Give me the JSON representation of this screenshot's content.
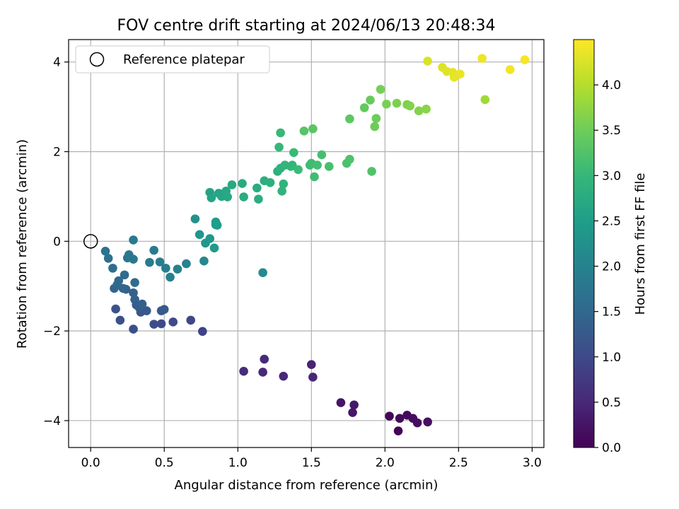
{
  "chart_data": {
    "type": "scatter",
    "title": "FOV centre drift starting at 2024/06/13 20:48:34",
    "xlabel": "Angular distance from reference (arcmin)",
    "ylabel": "Rotation from reference (arcmin)",
    "colorbar_label": "Hours from first FF file",
    "colormap": "viridis",
    "xlim": [
      -0.15,
      3.08
    ],
    "ylim": [
      -4.6,
      4.5
    ],
    "color_range": [
      0.0,
      4.5
    ],
    "grid": true,
    "legend": {
      "position": "top-left",
      "label": "Reference platepar"
    },
    "x_ticks": [
      "0.0",
      "0.5",
      "1.0",
      "1.5",
      "2.0",
      "2.5",
      "3.0"
    ],
    "x_tick_values": [
      0.0,
      0.5,
      1.0,
      1.5,
      2.0,
      2.5,
      3.0
    ],
    "y_ticks": [
      "−4",
      "−2",
      "0",
      "2",
      "4"
    ],
    "y_tick_values": [
      -4,
      -2,
      0,
      2,
      4
    ],
    "c_ticks": [
      "0.0",
      "0.5",
      "1.0",
      "1.5",
      "2.0",
      "2.5",
      "3.0",
      "3.5",
      "4.0"
    ],
    "c_tick_values": [
      0.0,
      0.5,
      1.0,
      1.5,
      2.0,
      2.5,
      3.0,
      3.5,
      4.0
    ],
    "reference_point": {
      "x": 0.0,
      "y": 0.0
    },
    "points": [
      [
        2.09,
        -4.23,
        0.03
      ],
      [
        2.03,
        -3.9,
        0.08
      ],
      [
        2.1,
        -3.95,
        0.1
      ],
      [
        2.15,
        -3.88,
        0.12
      ],
      [
        2.19,
        -3.95,
        0.15
      ],
      [
        2.22,
        -4.05,
        0.17
      ],
      [
        2.29,
        -4.03,
        0.19
      ],
      [
        1.7,
        -3.6,
        0.25
      ],
      [
        1.78,
        -3.82,
        0.28
      ],
      [
        1.79,
        -3.65,
        0.3
      ],
      [
        1.5,
        -2.75,
        0.45
      ],
      [
        1.51,
        -3.03,
        0.48
      ],
      [
        1.31,
        -3.01,
        0.5
      ],
      [
        1.17,
        -2.92,
        0.52
      ],
      [
        1.18,
        -2.63,
        0.55
      ],
      [
        1.04,
        -2.9,
        0.58
      ],
      [
        0.76,
        -2.01,
        0.9
      ],
      [
        0.68,
        -1.76,
        0.95
      ],
      [
        0.56,
        -1.8,
        1.0
      ],
      [
        0.48,
        -1.84,
        1.03
      ],
      [
        0.43,
        -1.85,
        1.05
      ],
      [
        0.29,
        -1.96,
        1.08
      ],
      [
        0.2,
        -1.76,
        1.1
      ],
      [
        0.17,
        -1.51,
        1.15
      ],
      [
        0.34,
        -1.58,
        1.2
      ],
      [
        0.38,
        -1.55,
        1.22
      ],
      [
        0.48,
        -1.55,
        1.25
      ],
      [
        0.5,
        -1.52,
        1.28
      ],
      [
        0.33,
        -1.48,
        1.3
      ],
      [
        0.31,
        -1.42,
        1.33
      ],
      [
        0.35,
        -1.4,
        1.35
      ],
      [
        0.3,
        -1.3,
        1.38
      ],
      [
        0.29,
        -1.15,
        1.4
      ],
      [
        0.24,
        -1.07,
        1.42
      ],
      [
        0.22,
        -1.05,
        1.45
      ],
      [
        0.16,
        -1.05,
        1.47
      ],
      [
        0.18,
        -0.97,
        1.5
      ],
      [
        0.19,
        -0.88,
        1.52
      ],
      [
        0.23,
        -0.75,
        1.55
      ],
      [
        0.3,
        -0.92,
        1.57
      ],
      [
        0.15,
        -0.6,
        1.6
      ],
      [
        0.12,
        -0.38,
        1.65
      ],
      [
        0.1,
        -0.22,
        1.7
      ],
      [
        0.25,
        -0.37,
        1.75
      ],
      [
        0.26,
        -0.3,
        1.78
      ],
      [
        0.29,
        -0.4,
        1.8
      ],
      [
        0.29,
        0.03,
        1.82
      ],
      [
        0.4,
        -0.47,
        1.85
      ],
      [
        0.43,
        -0.2,
        1.88
      ],
      [
        0.47,
        -0.46,
        1.9
      ],
      [
        0.51,
        -0.6,
        1.92
      ],
      [
        0.54,
        -0.8,
        1.95
      ],
      [
        0.59,
        -0.62,
        1.98
      ],
      [
        0.65,
        -0.5,
        2.0
      ],
      [
        0.77,
        -0.44,
        2.1
      ],
      [
        1.17,
        -0.7,
        2.15
      ],
      [
        0.71,
        0.5,
        2.3
      ],
      [
        0.74,
        0.15,
        2.35
      ],
      [
        0.78,
        -0.04,
        2.38
      ],
      [
        0.81,
        0.06,
        2.4
      ],
      [
        0.84,
        -0.15,
        2.42
      ],
      [
        0.85,
        0.37,
        2.45
      ],
      [
        0.85,
        0.43,
        2.48
      ],
      [
        0.86,
        0.36,
        2.5
      ],
      [
        0.81,
        1.09,
        2.6
      ],
      [
        0.82,
        0.97,
        2.62
      ],
      [
        0.87,
        1.07,
        2.64
      ],
      [
        0.89,
        1.0,
        2.66
      ],
      [
        0.92,
        1.12,
        2.68
      ],
      [
        0.93,
        0.99,
        2.7
      ],
      [
        0.96,
        1.26,
        2.72
      ],
      [
        1.03,
        1.29,
        2.74
      ],
      [
        1.04,
        0.99,
        2.76
      ],
      [
        1.13,
        1.19,
        2.78
      ],
      [
        1.14,
        0.94,
        2.8
      ],
      [
        1.18,
        1.35,
        2.82
      ],
      [
        1.22,
        1.31,
        2.84
      ],
      [
        1.27,
        1.56,
        2.86
      ],
      [
        1.29,
        1.63,
        2.88
      ],
      [
        1.3,
        1.12,
        2.9
      ],
      [
        1.31,
        1.28,
        2.92
      ],
      [
        1.32,
        1.7,
        2.94
      ],
      [
        1.36,
        1.67,
        2.96
      ],
      [
        1.37,
        1.7,
        2.98
      ],
      [
        1.28,
        2.1,
        3.0
      ],
      [
        1.29,
        2.42,
        3.02
      ],
      [
        1.38,
        1.98,
        3.04
      ],
      [
        1.41,
        1.6,
        3.06
      ],
      [
        1.49,
        1.7,
        3.08
      ],
      [
        1.5,
        1.74,
        3.1
      ],
      [
        1.52,
        1.44,
        3.12
      ],
      [
        1.54,
        1.7,
        3.14
      ],
      [
        1.57,
        1.93,
        3.16
      ],
      [
        1.62,
        1.67,
        3.18
      ],
      [
        1.74,
        1.74,
        3.2
      ],
      [
        1.76,
        1.83,
        3.22
      ],
      [
        1.91,
        1.56,
        3.25
      ],
      [
        1.45,
        2.46,
        3.3
      ],
      [
        1.51,
        2.51,
        3.32
      ],
      [
        1.76,
        2.73,
        3.35
      ],
      [
        1.86,
        2.98,
        3.4
      ],
      [
        1.9,
        3.15,
        3.45
      ],
      [
        1.93,
        2.56,
        3.48
      ],
      [
        1.94,
        2.74,
        3.5
      ],
      [
        1.97,
        3.39,
        3.55
      ],
      [
        2.01,
        3.06,
        3.58
      ],
      [
        2.08,
        3.08,
        3.6
      ],
      [
        2.15,
        3.05,
        3.62
      ],
      [
        2.17,
        3.02,
        3.64
      ],
      [
        2.23,
        2.91,
        3.66
      ],
      [
        2.28,
        2.95,
        3.7
      ],
      [
        2.68,
        3.16,
        3.85
      ],
      [
        2.29,
        4.02,
        4.25
      ],
      [
        2.39,
        3.88,
        4.28
      ],
      [
        2.42,
        3.79,
        4.3
      ],
      [
        2.46,
        3.77,
        4.32
      ],
      [
        2.47,
        3.66,
        4.34
      ],
      [
        2.51,
        3.73,
        4.36
      ],
      [
        2.66,
        4.08,
        4.4
      ],
      [
        2.85,
        3.83,
        4.42
      ],
      [
        2.95,
        4.05,
        4.45
      ]
    ]
  }
}
